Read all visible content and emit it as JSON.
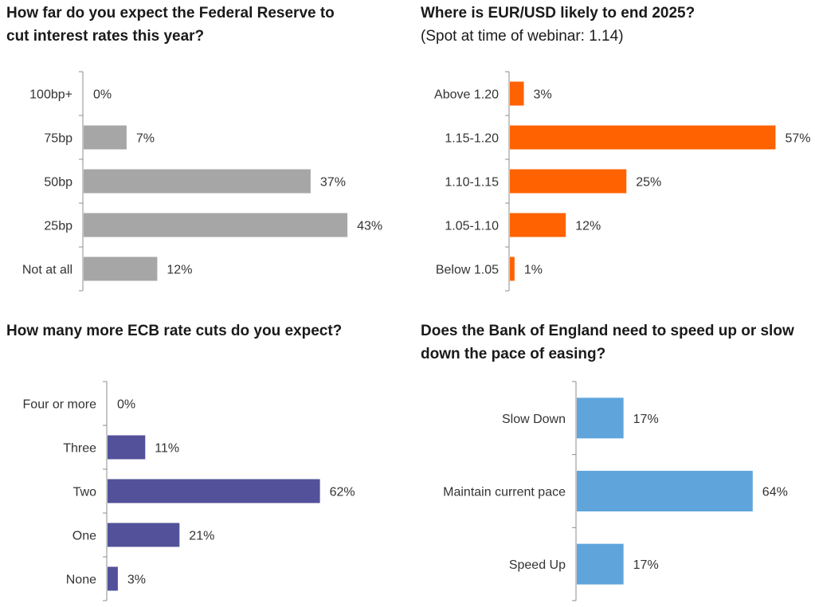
{
  "chart_data": [
    {
      "type": "bar",
      "orientation": "horizontal",
      "title": "How far do you expect the Federal Reserve to",
      "title_line2": "cut interest rates this year?",
      "subtitle": "",
      "categories": [
        "100bp+",
        "75bp",
        "50bp",
        "25bp",
        "Not at all"
      ],
      "values": [
        0,
        7,
        37,
        43,
        12
      ],
      "value_labels": [
        "0%",
        "7%",
        "37%",
        "43%",
        "12%"
      ],
      "unit": "%",
      "xlim": [
        0,
        100
      ],
      "color": "#a6a6a6",
      "grid": false
    },
    {
      "type": "bar",
      "orientation": "horizontal",
      "title": "Where is EUR/USD likely to end 2025?",
      "title_line2": "",
      "subtitle": "(Spot at time of webinar: 1.14)",
      "categories": [
        "Above 1.20",
        "1.15-1.20",
        "1.10-1.15",
        "1.05-1.10",
        "Below 1.05"
      ],
      "values": [
        3,
        57,
        25,
        12,
        1
      ],
      "value_labels": [
        "3%",
        "57%",
        "25%",
        "12%",
        "1%"
      ],
      "unit": "%",
      "xlim": [
        0,
        100
      ],
      "color": "#ff6200",
      "grid": false
    },
    {
      "type": "bar",
      "orientation": "horizontal",
      "title": "How many more ECB rate cuts do you expect?",
      "title_line2": "",
      "subtitle": "",
      "categories": [
        "Four or more",
        "Three",
        "Two",
        "One",
        "None"
      ],
      "values": [
        0,
        11,
        62,
        21,
        3
      ],
      "value_labels": [
        "0%",
        "11%",
        "62%",
        "21%",
        "3%"
      ],
      "unit": "%",
      "xlim": [
        0,
        100
      ],
      "color": "#525199",
      "grid": false
    },
    {
      "type": "bar",
      "orientation": "horizontal",
      "title": "Does the Bank of England need to speed up or slow",
      "title_line2": "down the pace of easing?",
      "subtitle": "",
      "categories": [
        "Slow Down",
        "Maintain current pace",
        "Speed Up"
      ],
      "values": [
        17,
        64,
        17
      ],
      "value_labels": [
        "17%",
        "64%",
        "17%"
      ],
      "unit": "%",
      "xlim": [
        0,
        100
      ],
      "color": "#5fa5dc",
      "grid": false
    }
  ]
}
